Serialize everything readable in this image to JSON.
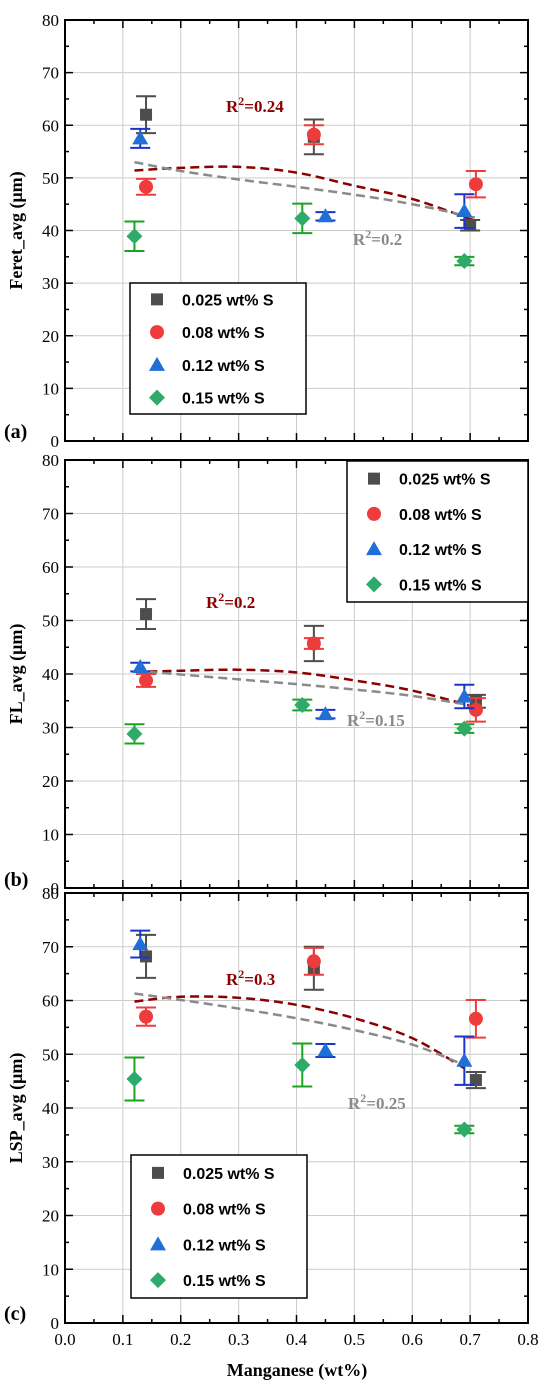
{
  "colors": {
    "series": [
      "#4d4d4d",
      "#ee3b3b",
      "#1f6fd6",
      "#2eaa6a"
    ],
    "err": [
      "#4d4d4d",
      "#ee3b3b",
      "#1b35c9",
      "#19a51f"
    ],
    "fit_dark": "#8b0000",
    "fit_grey": "#8a8a8a",
    "grid": "#cccccc"
  },
  "x_axis": {
    "label": "Manganese (wt%)",
    "ticks": [
      "0.0",
      "0.1",
      "0.2",
      "0.3",
      "0.4",
      "0.5",
      "0.6",
      "0.7",
      "0.8"
    ]
  },
  "chart_data": [
    {
      "type": "scatter",
      "panel": "(a)",
      "ylabel": "Feret_avg (μm)",
      "xlim": [
        0,
        0.8
      ],
      "ylim": [
        0,
        80
      ],
      "yticks": [
        "0",
        "10",
        "20",
        "30",
        "40",
        "50",
        "60",
        "70",
        "80"
      ],
      "grid": true,
      "legend_position": "bottom-left",
      "series": [
        {
          "name": "0.025 wt% S",
          "marker": "square",
          "points": [
            {
              "x": 0.14,
              "y": 62.0,
              "err": 3.5
            },
            {
              "x": 0.43,
              "y": 57.8,
              "err": 3.3
            },
            {
              "x": 0.7,
              "y": 41.0,
              "err": 1.0
            }
          ]
        },
        {
          "name": "0.08 wt% S",
          "marker": "circle",
          "points": [
            {
              "x": 0.14,
              "y": 48.3,
              "err": 1.5
            },
            {
              "x": 0.43,
              "y": 58.2,
              "err": 1.8
            },
            {
              "x": 0.71,
              "y": 48.8,
              "err": 2.5
            }
          ]
        },
        {
          "name": "0.12 wt% S",
          "marker": "triangle",
          "points": [
            {
              "x": 0.13,
              "y": 57.5,
              "err": 1.8
            },
            {
              "x": 0.45,
              "y": 42.7,
              "err": 0.8
            },
            {
              "x": 0.69,
              "y": 43.7,
              "err": 3.2
            }
          ]
        },
        {
          "name": "0.15 wt% S",
          "marker": "diamond",
          "points": [
            {
              "x": 0.12,
              "y": 38.9,
              "err": 2.8
            },
            {
              "x": 0.41,
              "y": 42.3,
              "err": 2.8
            },
            {
              "x": 0.69,
              "y": 34.2,
              "err": 0.8
            }
          ]
        }
      ],
      "fits": [
        {
          "style": "dark",
          "label": "R²=0.24",
          "points": [
            [
              0.12,
              51.4
            ],
            [
              0.2,
              51.9
            ],
            [
              0.3,
              52.1
            ],
            [
              0.4,
              51.0
            ],
            [
              0.5,
              48.5
            ],
            [
              0.6,
              46.0
            ],
            [
              0.71,
              41.8
            ]
          ]
        },
        {
          "style": "grey",
          "label": "R²=0.2",
          "points": [
            [
              0.12,
              53.0
            ],
            [
              0.2,
              51.3
            ],
            [
              0.3,
              49.7
            ],
            [
              0.4,
              48.3
            ],
            [
              0.5,
              46.8
            ],
            [
              0.6,
              45.0
            ],
            [
              0.71,
              42.4
            ]
          ]
        }
      ]
    },
    {
      "type": "scatter",
      "panel": "(b)",
      "ylabel": "FL_avg (μm)",
      "xlim": [
        0,
        0.8
      ],
      "ylim": [
        0,
        80
      ],
      "yticks": [
        "0",
        "10",
        "20",
        "30",
        "40",
        "50",
        "60",
        "70",
        "80"
      ],
      "grid": true,
      "legend_position": "top-right",
      "series": [
        {
          "name": "0.025 wt% S",
          "marker": "square",
          "points": [
            {
              "x": 0.14,
              "y": 51.2,
              "err": 2.8
            },
            {
              "x": 0.43,
              "y": 45.7,
              "err": 3.3
            },
            {
              "x": 0.71,
              "y": 34.9,
              "err": 1.2
            }
          ]
        },
        {
          "name": "0.08 wt% S",
          "marker": "circle",
          "points": [
            {
              "x": 0.14,
              "y": 38.8,
              "err": 1.2
            },
            {
              "x": 0.43,
              "y": 45.7,
              "err": 1.0
            },
            {
              "x": 0.71,
              "y": 33.3,
              "err": 2.2
            }
          ]
        },
        {
          "name": "0.12 wt% S",
          "marker": "triangle",
          "points": [
            {
              "x": 0.13,
              "y": 41.3,
              "err": 0.8
            },
            {
              "x": 0.45,
              "y": 32.5,
              "err": 0.8
            },
            {
              "x": 0.69,
              "y": 35.8,
              "err": 2.2
            }
          ]
        },
        {
          "name": "0.15 wt% S",
          "marker": "diamond",
          "points": [
            {
              "x": 0.12,
              "y": 28.8,
              "err": 1.8
            },
            {
              "x": 0.41,
              "y": 34.2,
              "err": 1.0
            },
            {
              "x": 0.69,
              "y": 29.8,
              "err": 0.8
            }
          ]
        }
      ],
      "fits": [
        {
          "style": "dark",
          "label": "R²=0.2",
          "points": [
            [
              0.12,
              40.4
            ],
            [
              0.2,
              40.6
            ],
            [
              0.3,
              40.8
            ],
            [
              0.4,
              40.3
            ],
            [
              0.5,
              38.8
            ],
            [
              0.6,
              36.9
            ],
            [
              0.71,
              33.8
            ]
          ]
        },
        {
          "style": "grey",
          "label": "R²=0.15",
          "points": [
            [
              0.12,
              40.6
            ],
            [
              0.2,
              39.9
            ],
            [
              0.3,
              39.0
            ],
            [
              0.4,
              38.1
            ],
            [
              0.5,
              37.1
            ],
            [
              0.6,
              35.9
            ],
            [
              0.71,
              34.0
            ]
          ]
        }
      ]
    },
    {
      "type": "scatter",
      "panel": "(c)",
      "ylabel": "LSP_avg (μm)",
      "xlim": [
        0,
        0.8
      ],
      "ylim": [
        0,
        80
      ],
      "yticks": [
        "0",
        "10",
        "20",
        "30",
        "40",
        "50",
        "60",
        "70",
        "80"
      ],
      "grid": true,
      "legend_position": "bottom-left",
      "series": [
        {
          "name": "0.025 wt% S",
          "marker": "square",
          "points": [
            {
              "x": 0.14,
              "y": 68.2,
              "err": 4.0
            },
            {
              "x": 0.43,
              "y": 66.0,
              "err": 4.0
            },
            {
              "x": 0.71,
              "y": 45.2,
              "err": 1.5
            }
          ]
        },
        {
          "name": "0.08 wt% S",
          "marker": "circle",
          "points": [
            {
              "x": 0.14,
              "y": 57.0,
              "err": 1.7
            },
            {
              "x": 0.43,
              "y": 67.3,
              "err": 2.5
            },
            {
              "x": 0.71,
              "y": 56.6,
              "err": 3.5
            }
          ]
        },
        {
          "name": "0.12 wt% S",
          "marker": "triangle",
          "points": [
            {
              "x": 0.13,
              "y": 70.5,
              "err": 2.5
            },
            {
              "x": 0.45,
              "y": 50.7,
              "err": 1.2
            },
            {
              "x": 0.69,
              "y": 48.8,
              "err": 4.5
            }
          ]
        },
        {
          "name": "0.15 wt% S",
          "marker": "diamond",
          "points": [
            {
              "x": 0.12,
              "y": 45.4,
              "err": 4.0
            },
            {
              "x": 0.41,
              "y": 48.0,
              "err": 4.0
            },
            {
              "x": 0.69,
              "y": 36.0,
              "err": 0.7
            }
          ]
        }
      ],
      "fits": [
        {
          "style": "dark",
          "label": "R²=0.3",
          "points": [
            [
              0.12,
              59.8
            ],
            [
              0.2,
              60.7
            ],
            [
              0.3,
              60.5
            ],
            [
              0.4,
              59.2
            ],
            [
              0.5,
              56.7
            ],
            [
              0.6,
              53.0
            ],
            [
              0.69,
              47.4
            ]
          ]
        },
        {
          "style": "grey",
          "label": "R²=0.25",
          "points": [
            [
              0.12,
              61.3
            ],
            [
              0.2,
              60.1
            ],
            [
              0.3,
              58.5
            ],
            [
              0.4,
              56.7
            ],
            [
              0.5,
              54.5
            ],
            [
              0.6,
              51.8
            ],
            [
              0.69,
              48.0
            ]
          ]
        }
      ]
    }
  ]
}
